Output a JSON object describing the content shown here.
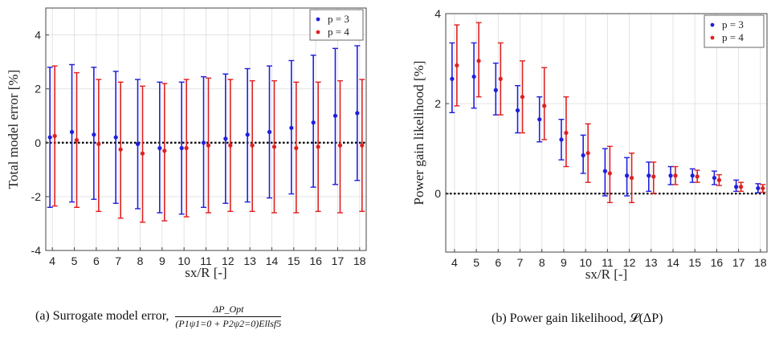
{
  "chart_data": [
    {
      "type": "errorbar",
      "id": "a",
      "ylabel": "Total model error [%]",
      "xlabel": "sx/R [-]",
      "xlim": [
        3.7,
        18.3
      ],
      "ylim": [
        -4,
        5
      ],
      "yticks": [
        -4,
        -2,
        0,
        2,
        4
      ],
      "xticks": [
        4,
        5,
        6,
        7,
        8,
        9,
        10,
        11,
        12,
        13,
        14,
        15,
        16,
        17,
        18
      ],
      "grid": true,
      "legend_position": "top-right",
      "reference_line": 0,
      "caption_text": "(a) Surrogate model error,",
      "caption_num": "ΔP_Opt",
      "caption_den": "(P1ψ1=0 + P2ψ2=0)Ellsf5",
      "series": [
        {
          "name": "p = 3",
          "color": "#1f1fdc",
          "x": [
            4,
            5,
            6,
            7,
            8,
            9,
            10,
            11,
            12,
            13,
            14,
            15,
            16,
            17,
            18
          ],
          "mean": [
            0.2,
            0.4,
            0.3,
            0.2,
            -0.05,
            -0.2,
            -0.2,
            0.0,
            0.15,
            0.3,
            0.4,
            0.55,
            0.75,
            1.0,
            1.1
          ],
          "lower": [
            -2.4,
            -2.2,
            -2.1,
            -2.25,
            -2.45,
            -2.6,
            -2.65,
            -2.4,
            -2.25,
            -2.2,
            -2.05,
            -1.9,
            -1.65,
            -1.55,
            -1.4
          ],
          "upper": [
            2.8,
            2.9,
            2.8,
            2.65,
            2.35,
            2.25,
            2.25,
            2.45,
            2.55,
            2.75,
            2.85,
            3.05,
            3.25,
            3.5,
            3.6
          ]
        },
        {
          "name": "p = 4",
          "color": "#e02020",
          "x": [
            4,
            5,
            6,
            7,
            8,
            9,
            10,
            11,
            12,
            13,
            14,
            15,
            16,
            17,
            18
          ],
          "mean": [
            0.25,
            0.1,
            -0.05,
            -0.25,
            -0.4,
            -0.3,
            -0.2,
            -0.1,
            -0.1,
            -0.1,
            -0.15,
            -0.2,
            -0.15,
            -0.1,
            -0.1
          ],
          "lower": [
            -2.35,
            -2.4,
            -2.55,
            -2.8,
            -2.95,
            -2.9,
            -2.75,
            -2.6,
            -2.55,
            -2.55,
            -2.6,
            -2.6,
            -2.55,
            -2.6,
            -2.55
          ],
          "upper": [
            2.85,
            2.6,
            2.35,
            2.25,
            2.1,
            2.2,
            2.35,
            2.4,
            2.35,
            2.3,
            2.3,
            2.25,
            2.25,
            2.3,
            2.35
          ]
        }
      ]
    },
    {
      "type": "errorbar",
      "id": "b",
      "ylabel": "Power gain likelihood [%]",
      "xlabel": "sx/R [-]",
      "xlim": [
        3.6,
        18.3
      ],
      "ylim": [
        -1.3,
        4
      ],
      "yticks": [
        0,
        2,
        4
      ],
      "xticks": [
        4,
        5,
        6,
        7,
        8,
        9,
        10,
        11,
        12,
        13,
        14,
        15,
        16,
        17,
        18
      ],
      "grid": true,
      "legend_position": "top-right",
      "reference_line": 0,
      "caption_text": "(b) Power gain likelihood, 𝓛(ΔP)",
      "series": [
        {
          "name": "p = 3",
          "color": "#1f1fdc",
          "x": [
            4,
            5,
            6,
            7,
            8,
            9,
            10,
            11,
            12,
            13,
            14,
            15,
            16,
            17,
            18
          ],
          "mean": [
            2.55,
            2.6,
            2.3,
            1.85,
            1.65,
            1.2,
            0.85,
            0.5,
            0.4,
            0.4,
            0.4,
            0.4,
            0.35,
            0.15,
            0.12
          ],
          "lower": [
            1.8,
            1.9,
            1.75,
            1.35,
            1.15,
            0.75,
            0.45,
            -0.05,
            -0.05,
            0.05,
            0.2,
            0.25,
            0.2,
            0.05,
            0.02
          ],
          "upper": [
            3.35,
            3.35,
            2.9,
            2.4,
            2.15,
            1.65,
            1.3,
            1.0,
            0.8,
            0.7,
            0.6,
            0.55,
            0.5,
            0.3,
            0.22
          ]
        },
        {
          "name": "p = 4",
          "color": "#e02020",
          "x": [
            4,
            5,
            6,
            7,
            8,
            9,
            10,
            11,
            12,
            13,
            14,
            15,
            16,
            17,
            18
          ],
          "mean": [
            2.85,
            2.95,
            2.55,
            2.15,
            1.95,
            1.35,
            0.9,
            0.45,
            0.35,
            0.38,
            0.4,
            0.38,
            0.3,
            0.15,
            0.12
          ],
          "lower": [
            1.95,
            2.15,
            1.75,
            1.35,
            1.2,
            0.6,
            0.25,
            -0.2,
            -0.2,
            0.0,
            0.2,
            0.25,
            0.18,
            0.05,
            0.03
          ],
          "upper": [
            3.75,
            3.8,
            3.35,
            2.95,
            2.8,
            2.15,
            1.55,
            1.05,
            0.9,
            0.7,
            0.6,
            0.52,
            0.42,
            0.25,
            0.2
          ]
        }
      ]
    }
  ]
}
